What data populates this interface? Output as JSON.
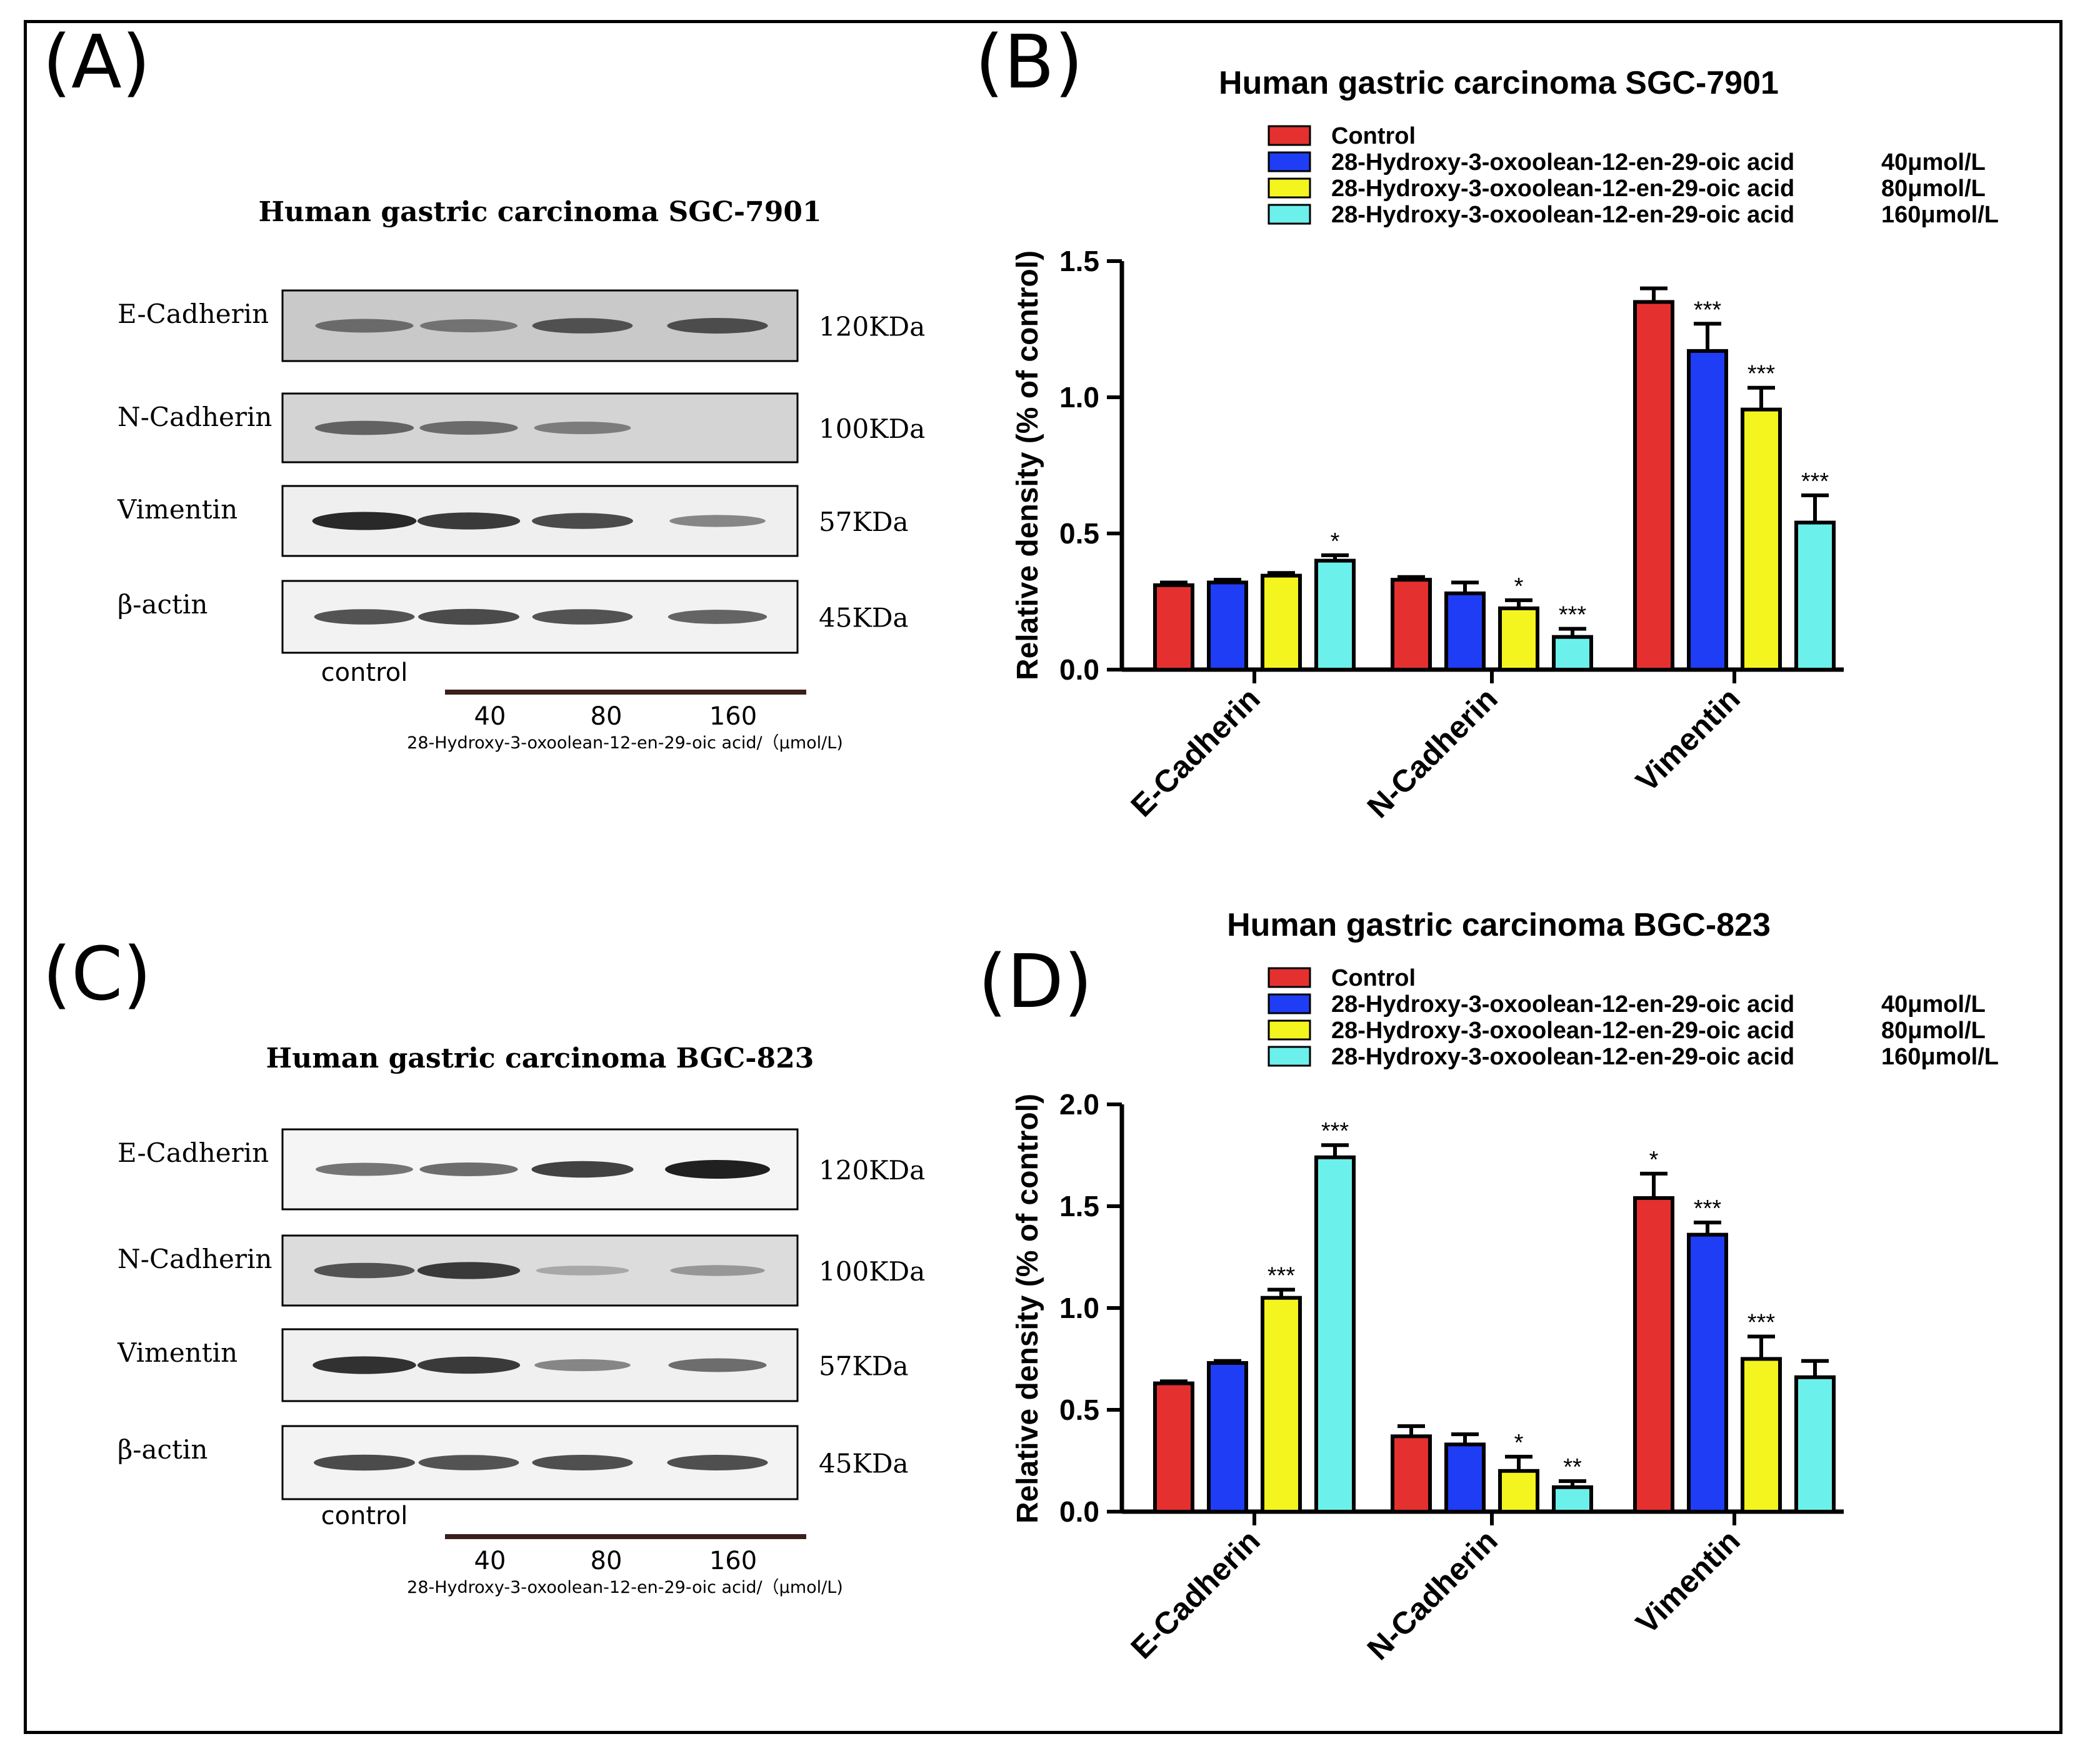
{
  "panel_labels": {
    "a": "(A)",
    "b": "(B)",
    "c": "(C)",
    "d": "(D)"
  },
  "blots": [
    {
      "title": "Human gastric carcinoma SGC-7901",
      "control_label": "control",
      "doses": [
        "40",
        "80",
        "160"
      ],
      "xlabel": "28-Hydroxy-3-oxoolean-12-en-29-oic acid/（μmol/L)",
      "rows": [
        {
          "protein": "E-Cadherin",
          "kda": "120KDa",
          "intensity": [
            0.55,
            0.5,
            0.7,
            0.72
          ],
          "background": "#c9c9c9"
        },
        {
          "protein": "N-Cadherin",
          "kda": "100KDa",
          "intensity": [
            0.6,
            0.55,
            0.45,
            0.0
          ],
          "background": "#d4d4d4"
        },
        {
          "protein": "Vimentin",
          "kda": "57KDa",
          "intensity": [
            0.95,
            0.85,
            0.75,
            0.4
          ],
          "background": "#efefef"
        },
        {
          "protein": "β-actin",
          "kda": "45KDa",
          "intensity": [
            0.7,
            0.75,
            0.7,
            0.6
          ],
          "background": "#f2f2f2"
        }
      ]
    },
    {
      "title": "Human gastric carcinoma BGC-823",
      "control_label": "control",
      "doses": [
        "40",
        "80",
        "160"
      ],
      "xlabel": "28-Hydroxy-3-oxoolean-12-en-29-oic acid/（μmol/L)",
      "rows": [
        {
          "protein": "E-Cadherin",
          "kda": "120KDa",
          "intensity": [
            0.5,
            0.55,
            0.8,
            1.0
          ],
          "background": "#f5f5f5"
        },
        {
          "protein": "N-Cadherin",
          "kda": "100KDa",
          "intensity": [
            0.7,
            0.85,
            0.2,
            0.3
          ],
          "background": "#dcdcdc"
        },
        {
          "protein": "Vimentin",
          "kda": "57KDa",
          "intensity": [
            0.9,
            0.85,
            0.4,
            0.55
          ],
          "background": "#f0f0f0"
        },
        {
          "protein": "β-actin",
          "kda": "45KDa",
          "intensity": [
            0.75,
            0.7,
            0.72,
            0.72
          ],
          "background": "#f3f3f3"
        }
      ]
    }
  ],
  "chart_data": [
    {
      "type": "bar",
      "title": "Human gastric carcinoma SGC-7901",
      "xlabel": "",
      "ylabel": "Relative density (% of control)",
      "ylim": [
        0,
        1.5
      ],
      "yticks": [
        "0.0",
        "0.5",
        "1.0",
        "1.5"
      ],
      "categories": [
        "E-Cadherin",
        "N-Cadherin",
        "Vimentin"
      ],
      "series": [
        {
          "name": "Control",
          "dose": "",
          "color": "#e53030",
          "values": [
            0.31,
            0.33,
            1.35
          ],
          "errors": [
            0.01,
            0.01,
            0.05
          ],
          "sig": [
            "",
            "",
            ""
          ]
        },
        {
          "name": "28-Hydroxy-3-oxoolean-12-en-29-oic acid",
          "dose": "40μmol/L",
          "color": "#1f3df5",
          "values": [
            0.32,
            0.28,
            1.17
          ],
          "errors": [
            0.01,
            0.04,
            0.1
          ],
          "sig": [
            "",
            "",
            "***"
          ]
        },
        {
          "name": "28-Hydroxy-3-oxoolean-12-en-29-oic acid",
          "dose": "80μmol/L",
          "color": "#f4f51e",
          "values": [
            0.345,
            0.225,
            0.955
          ],
          "errors": [
            0.01,
            0.03,
            0.08
          ],
          "sig": [
            "",
            "*",
            "***"
          ]
        },
        {
          "name": "28-Hydroxy-3-oxoolean-12-en-29-oic acid",
          "dose": "160μmol/L",
          "color": "#6cf0ec",
          "values": [
            0.4,
            0.12,
            0.54
          ],
          "errors": [
            0.02,
            0.03,
            0.1
          ],
          "sig": [
            "*",
            "***",
            "***"
          ]
        }
      ]
    },
    {
      "type": "bar",
      "title": "Human gastric carcinoma BGC-823",
      "xlabel": "",
      "ylabel": "Relative density (% of control)",
      "ylim": [
        0,
        2.0
      ],
      "yticks": [
        "0.0",
        "0.5",
        "1.0",
        "1.5",
        "2.0"
      ],
      "categories": [
        "E-Cadherin",
        "N-Cadherin",
        "Vimentin"
      ],
      "series": [
        {
          "name": "Control",
          "dose": "",
          "color": "#e53030",
          "values": [
            0.63,
            0.37,
            1.54
          ],
          "errors": [
            0.01,
            0.05,
            0.12
          ],
          "sig": [
            "",
            "",
            "*"
          ]
        },
        {
          "name": "28-Hydroxy-3-oxoolean-12-en-29-oic acid",
          "dose": "40μmol/L",
          "color": "#1f3df5",
          "values": [
            0.73,
            0.33,
            1.36
          ],
          "errors": [
            0.01,
            0.05,
            0.06
          ],
          "sig": [
            "",
            "",
            "***"
          ]
        },
        {
          "name": "28-Hydroxy-3-oxoolean-12-en-29-oic acid",
          "dose": "80μmol/L",
          "color": "#f4f51e",
          "values": [
            1.05,
            0.2,
            0.75
          ],
          "errors": [
            0.04,
            0.07,
            0.11
          ],
          "sig": [
            "***",
            "*",
            "***"
          ]
        },
        {
          "name": "28-Hydroxy-3-oxoolean-12-en-29-oic acid",
          "dose": "160μmol/L",
          "color": "#6cf0ec",
          "values": [
            1.74,
            0.12,
            0.66
          ],
          "errors": [
            0.06,
            0.03,
            0.08
          ],
          "sig": [
            "***",
            "**",
            ""
          ]
        }
      ]
    }
  ]
}
